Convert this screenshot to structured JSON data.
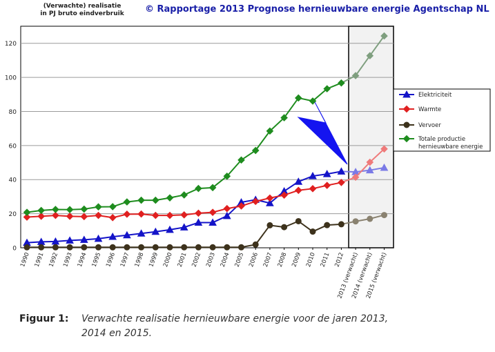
{
  "header": {
    "y_axis_header_line1": "(Verwachte) realisatie",
    "y_axis_header_line2": "in PJ bruto eindverbruik",
    "copyright": "© Rapportage 2013 Prognose hernieuwbare energie Agentschap NL",
    "copyright_color": "#1a20a8"
  },
  "caption": {
    "label": "Figuur 1:",
    "text": "Verwachte realisatie hernieuwbare energie voor de jaren 2013, 2014 en 2015."
  },
  "chart_data": {
    "type": "line",
    "title": "",
    "xlabel": "",
    "ylabel": "(Verwachte) realisatie in PJ bruto eindverbruik",
    "categories": [
      "1990",
      "1991",
      "1992",
      "1993",
      "1994",
      "1995",
      "1996",
      "1997",
      "1998",
      "1999",
      "2000",
      "2001",
      "2002",
      "2003",
      "2004",
      "2005",
      "2006",
      "2007",
      "2008",
      "2009",
      "2010",
      "2011",
      "2012",
      "2013 (verwacht)",
      "2014 (verwacht)",
      "2015 (verwacht)"
    ],
    "forecast_start_index": 23,
    "ylim": [
      0,
      130
    ],
    "yticks": [
      0,
      20,
      40,
      60,
      80,
      100,
      120
    ],
    "grid": true,
    "legend_position": "right",
    "forecast_region_shaded": true,
    "annotation": "blue arrow pointing to the start of the forecast period",
    "series": [
      {
        "name": "Elektriciteit",
        "color": "#1414c8",
        "forecast_color": "#7a7ae6",
        "marker": "triangle",
        "values": [
          3,
          3.5,
          3.7,
          4.3,
          4.7,
          5.3,
          6.5,
          7.4,
          8.4,
          9.4,
          10.6,
          12.0,
          14.8,
          14.8,
          18.7,
          26.7,
          28.2,
          26.2,
          33.2,
          38.8,
          42.1,
          43.3,
          44.8,
          44.5,
          45.5,
          47.0
        ]
      },
      {
        "name": "Warmte",
        "color": "#e02020",
        "forecast_color": "#ef7a7a",
        "marker": "diamond",
        "values": [
          18.0,
          18.5,
          19.0,
          18.5,
          18.3,
          19.0,
          17.7,
          19.7,
          19.8,
          19.0,
          19.0,
          19.3,
          20.3,
          20.8,
          23.0,
          24.5,
          27.2,
          29.2,
          30.9,
          33.7,
          34.7,
          36.6,
          38.3,
          41.4,
          50.2,
          58.0
        ]
      },
      {
        "name": "Vervoer",
        "color": "#3d321c",
        "forecast_color": "#8a8270",
        "marker": "circle",
        "values": [
          0.3,
          0.3,
          0.3,
          0.3,
          0.3,
          0.3,
          0.3,
          0.3,
          0.3,
          0.3,
          0.3,
          0.3,
          0.3,
          0.3,
          0.3,
          0.3,
          1.9,
          13.2,
          12.1,
          15.6,
          9.5,
          13.3,
          13.8,
          15.5,
          17.0,
          19.2
        ]
      },
      {
        "name": "Totale productie hernieuwbare energie",
        "color": "#1e8c1e",
        "forecast_color": "#7f9f7f",
        "marker": "diamond",
        "values": [
          20.8,
          21.9,
          22.5,
          22.4,
          22.7,
          24.0,
          24.1,
          26.9,
          27.9,
          27.9,
          29.3,
          31.0,
          34.8,
          35.3,
          42.0,
          51.5,
          57.1,
          68.5,
          76.3,
          87.9,
          86.1,
          93.3,
          96.7,
          101.0,
          112.7,
          124.3
        ]
      }
    ]
  }
}
